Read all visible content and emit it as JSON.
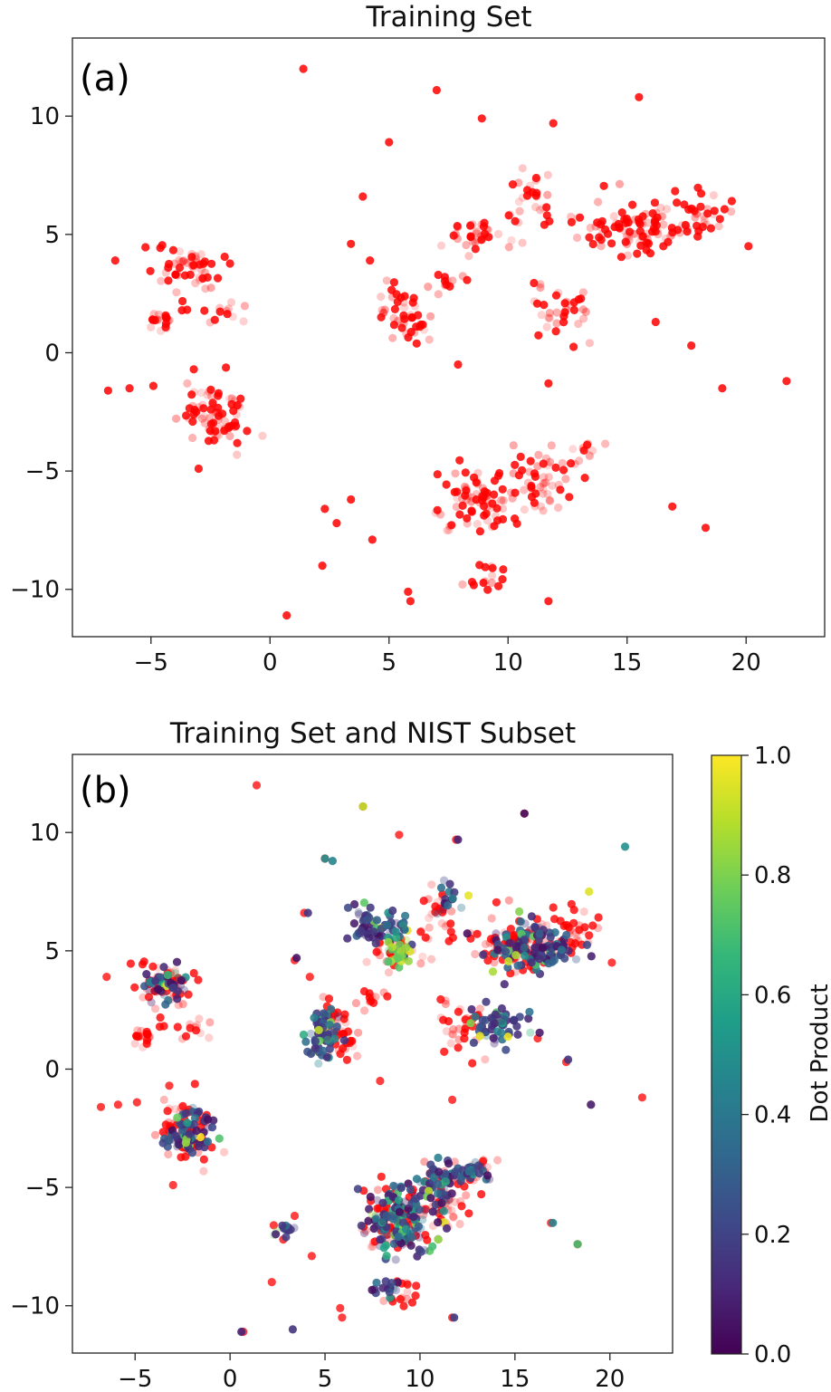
{
  "chart_data": [
    {
      "type": "scatter",
      "panel_label": "(a)",
      "title": "Training Set",
      "xlabel": "",
      "ylabel": "",
      "xlim": [
        -8.3,
        23.3
      ],
      "ylim": [
        -12.0,
        13.3
      ],
      "xticks": [
        -5,
        0,
        5,
        10,
        15,
        20
      ],
      "yticks": [
        -10,
        -5,
        0,
        5,
        10
      ],
      "xtick_labels": [
        "−5",
        "0",
        "5",
        "10",
        "15",
        "20"
      ],
      "ytick_labels": [
        "−10",
        "−5",
        "0",
        "5",
        "10"
      ],
      "grid": false,
      "marker_color": "#ff0000",
      "marker_alpha_range": [
        0.12,
        0.9
      ],
      "outliers": [
        [
          1.4,
          12.0
        ],
        [
          7.0,
          11.1
        ],
        [
          15.5,
          10.8
        ],
        [
          8.9,
          9.9
        ],
        [
          11.9,
          9.7
        ],
        [
          5.0,
          8.9
        ],
        [
          3.4,
          4.6
        ],
        [
          3.9,
          6.6
        ],
        [
          4.2,
          3.9
        ],
        [
          6.3,
          1.1
        ],
        [
          -6.8,
          -1.6
        ],
        [
          -5.9,
          -1.5
        ],
        [
          -4.9,
          -1.4
        ],
        [
          -3.2,
          -0.7
        ],
        [
          -3.0,
          -4.9
        ],
        [
          2.3,
          -6.6
        ],
        [
          2.8,
          -7.2
        ],
        [
          3.4,
          -6.2
        ],
        [
          4.3,
          -7.9
        ],
        [
          5.8,
          -10.1
        ],
        [
          5.9,
          -10.5
        ],
        [
          0.7,
          -11.1
        ],
        [
          2.2,
          -9.0
        ],
        [
          11.7,
          -10.5
        ],
        [
          16.9,
          -6.5
        ],
        [
          18.3,
          -7.4
        ],
        [
          19.0,
          -1.5
        ],
        [
          17.7,
          0.3
        ],
        [
          21.7,
          -1.2
        ],
        [
          11.7,
          -1.3
        ],
        [
          7.9,
          -0.5
        ],
        [
          16.2,
          1.3
        ],
        [
          20.1,
          4.5
        ],
        [
          -6.5,
          3.9
        ]
      ],
      "clusters": [
        {
          "center": [
            -3.5,
            3.6
          ],
          "spread": [
            1.3,
            0.8
          ],
          "count": 55
        },
        {
          "center": [
            -4.4,
            1.4
          ],
          "spread": [
            0.7,
            0.5
          ],
          "count": 20
        },
        {
          "center": [
            -1.8,
            1.7
          ],
          "spread": [
            0.8,
            0.6
          ],
          "count": 12
        },
        {
          "center": [
            -2.3,
            -2.6
          ],
          "spread": [
            1.4,
            1.1
          ],
          "count": 75
        },
        {
          "center": [
            5.6,
            1.6
          ],
          "spread": [
            1.2,
            1.2
          ],
          "count": 45
        },
        {
          "center": [
            7.3,
            3.0
          ],
          "spread": [
            0.7,
            0.4
          ],
          "count": 12
        },
        {
          "center": [
            8.9,
            4.9
          ],
          "spread": [
            1.2,
            0.8
          ],
          "count": 35
        },
        {
          "center": [
            10.9,
            6.5
          ],
          "spread": [
            1.1,
            0.9
          ],
          "count": 28
        },
        {
          "center": [
            12.3,
            1.8
          ],
          "spread": [
            1.2,
            1.1
          ],
          "count": 35
        },
        {
          "center": [
            15.5,
            5.3
          ],
          "spread": [
            2.2,
            1.1
          ],
          "count": 110
        },
        {
          "center": [
            18.3,
            5.9
          ],
          "spread": [
            0.8,
            0.9
          ],
          "count": 25
        },
        {
          "center": [
            8.6,
            -6.2
          ],
          "spread": [
            1.6,
            1.3
          ],
          "count": 75
        },
        {
          "center": [
            11.2,
            -5.5
          ],
          "spread": [
            1.3,
            1.4
          ],
          "count": 55
        },
        {
          "center": [
            9.1,
            -9.6
          ],
          "spread": [
            0.8,
            0.6
          ],
          "count": 15
        },
        {
          "center": [
            13.3,
            -4.1
          ],
          "spread": [
            0.6,
            0.3
          ],
          "count": 10
        }
      ]
    },
    {
      "type": "scatter",
      "panel_label": "(b)",
      "title": "Training Set and NIST Subset",
      "xlabel": "",
      "ylabel": "",
      "xlim": [
        -8.3,
        23.3
      ],
      "ylim": [
        -12.0,
        13.3
      ],
      "xticks": [
        -5,
        0,
        5,
        10,
        15,
        20
      ],
      "yticks": [
        -10,
        -5,
        0,
        5,
        10
      ],
      "xtick_labels": [
        "−5",
        "0",
        "5",
        "10",
        "15",
        "20"
      ],
      "ytick_labels": [
        "−10",
        "−5",
        "0",
        "5",
        "10"
      ],
      "grid": false,
      "training_color": "#ff0000",
      "colorbar": {
        "label": "Dot Product",
        "min": 0.0,
        "max": 1.0,
        "ticks": [
          0.0,
          0.2,
          0.4,
          0.6,
          0.8,
          1.0
        ],
        "tick_labels": [
          "0.0",
          "0.2",
          "0.4",
          "0.6",
          "0.8",
          "1.0"
        ],
        "colormap": "viridis",
        "stops": [
          "#440154",
          "#482878",
          "#3e4a89",
          "#31688e",
          "#26828e",
          "#1f9e89",
          "#35b779",
          "#6ece58",
          "#b5de2b",
          "#fde725"
        ]
      },
      "colored_outliers": [
        {
          "x": 7.0,
          "y": 11.1,
          "v": 0.9
        },
        {
          "x": 15.5,
          "y": 10.8,
          "v": 0.05
        },
        {
          "x": 20.8,
          "y": 9.4,
          "v": 0.5
        },
        {
          "x": 18.9,
          "y": 7.5,
          "v": 0.95
        },
        {
          "x": 12.0,
          "y": 9.7,
          "v": 0.1
        },
        {
          "x": 0.6,
          "y": -11.1,
          "v": 0.1
        },
        {
          "x": 3.3,
          "y": -11.0,
          "v": 0.15
        },
        {
          "x": 11.8,
          "y": -10.5,
          "v": 0.2
        },
        {
          "x": 18.3,
          "y": -7.4,
          "v": 0.7
        },
        {
          "x": 17.0,
          "y": -6.5,
          "v": 0.45
        },
        {
          "x": 19.0,
          "y": -1.5,
          "v": 0.15
        },
        {
          "x": 5.0,
          "y": 8.9,
          "v": 0.5
        },
        {
          "x": 5.4,
          "y": 8.8,
          "v": 0.45
        },
        {
          "x": 3.5,
          "y": 4.7,
          "v": 0.05
        },
        {
          "x": 4.1,
          "y": 6.6,
          "v": 0.15
        },
        {
          "x": 17.8,
          "y": 0.4,
          "v": 0.15
        }
      ],
      "clusters": [
        {
          "center": [
            -3.3,
            3.6
          ],
          "spread": [
            1.2,
            0.8
          ],
          "count": 40
        },
        {
          "center": [
            -2.2,
            -2.7
          ],
          "spread": [
            1.3,
            1.1
          ],
          "count": 70
        },
        {
          "center": [
            5.0,
            1.5
          ],
          "spread": [
            0.8,
            1.3
          ],
          "count": 70
        },
        {
          "center": [
            7.9,
            6.0
          ],
          "spread": [
            1.6,
            0.8
          ],
          "count": 70
        },
        {
          "center": [
            8.8,
            4.8
          ],
          "spread": [
            0.6,
            0.6
          ],
          "count": 25,
          "vmin": 0.7,
          "vmax": 1.0
        },
        {
          "center": [
            11.5,
            7.3
          ],
          "spread": [
            0.6,
            0.6
          ],
          "count": 15
        },
        {
          "center": [
            14.1,
            1.9
          ],
          "spread": [
            1.6,
            0.9
          ],
          "count": 55
        },
        {
          "center": [
            15.9,
            5.2
          ],
          "spread": [
            2.2,
            1.0
          ],
          "count": 120
        },
        {
          "center": [
            9.0,
            -6.4
          ],
          "spread": [
            1.8,
            1.6
          ],
          "count": 140
        },
        {
          "center": [
            11.0,
            -5.0
          ],
          "spread": [
            1.2,
            1.2
          ],
          "count": 50
        },
        {
          "center": [
            12.7,
            -4.3
          ],
          "spread": [
            0.8,
            0.4
          ],
          "count": 25
        },
        {
          "center": [
            2.8,
            -6.8
          ],
          "spread": [
            0.5,
            0.3
          ],
          "count": 12
        },
        {
          "center": [
            8.2,
            -9.3
          ],
          "spread": [
            0.7,
            0.5
          ],
          "count": 15
        }
      ]
    }
  ]
}
